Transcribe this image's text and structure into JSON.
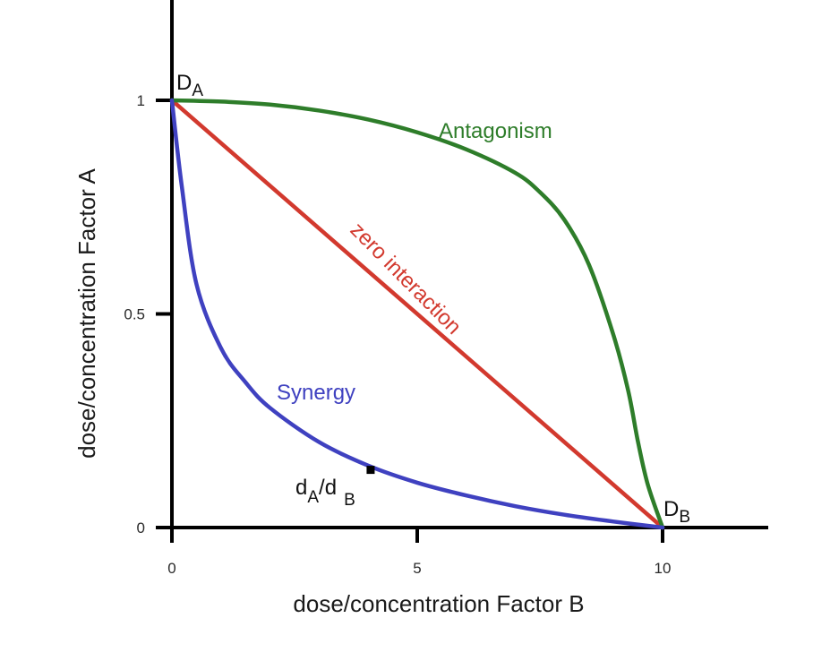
{
  "chart_data": {
    "type": "line",
    "title": "",
    "xlabel": "dose/concentration Factor B",
    "ylabel": "dose/concentration Factor A",
    "xlim": [
      0,
      12
    ],
    "ylim": [
      0,
      1.25
    ],
    "xticks": [
      0,
      5,
      10
    ],
    "yticks": [
      0,
      0.5,
      1
    ],
    "xtick_labels": [
      "0",
      "5",
      "10"
    ],
    "ytick_labels": [
      "0",
      "0.5",
      "1"
    ],
    "grid": false,
    "legend": "none",
    "series": [
      {
        "name": "zero interaction",
        "color": "#d2392e",
        "x": [
          0,
          10
        ],
        "y": [
          1,
          0
        ]
      },
      {
        "name": "Antagonism",
        "color": "#2e7d2a",
        "x": [
          0,
          1,
          2,
          3,
          4,
          5,
          6,
          7,
          7.5,
          8,
          8.5,
          9,
          9.3,
          9.5,
          9.7,
          10
        ],
        "y": [
          1,
          0.997,
          0.99,
          0.976,
          0.955,
          0.925,
          0.885,
          0.83,
          0.785,
          0.72,
          0.615,
          0.45,
          0.32,
          0.2,
          0.1,
          0
        ]
      },
      {
        "name": "Synergy",
        "color": "#3f41c0",
        "x": [
          0,
          0.2,
          0.5,
          1,
          1.5,
          2,
          3,
          4,
          5,
          6,
          7,
          8,
          9,
          10
        ],
        "y": [
          1,
          0.8,
          0.57,
          0.42,
          0.34,
          0.28,
          0.2,
          0.145,
          0.105,
          0.075,
          0.05,
          0.03,
          0.014,
          0
        ]
      }
    ],
    "annotations": {
      "da_main": "D",
      "da_sub": "A",
      "db_main": "D",
      "db_sub": "B",
      "ratio_d1": "d",
      "ratio_sub1": "A",
      "ratio_slash": "/d",
      "ratio_sub2": "B",
      "ratio_point": {
        "x": 4.05,
        "y": 0.135
      }
    }
  }
}
